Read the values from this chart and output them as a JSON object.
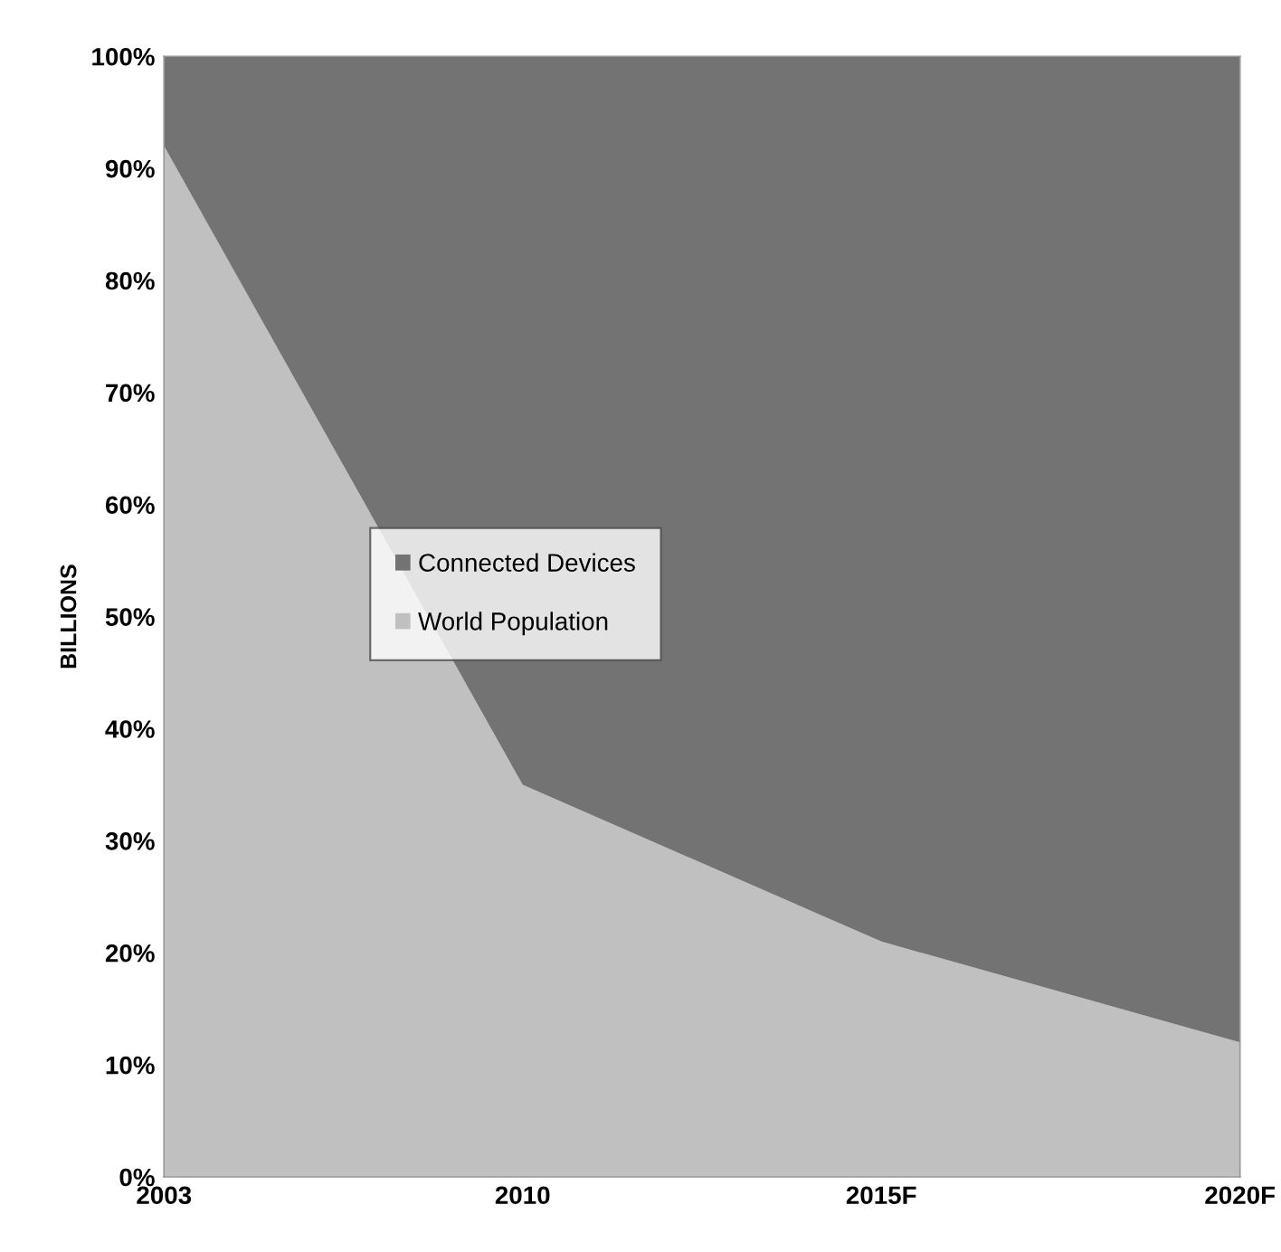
{
  "chart_data": {
    "type": "area",
    "stacked": true,
    "ylabel": "BILLIONS",
    "categories": [
      "2003",
      "2010",
      "2015F",
      "2020F"
    ],
    "series": [
      {
        "name": "World Population",
        "color": "#c0c0c0",
        "values": [
          92,
          35,
          21,
          12
        ]
      },
      {
        "name": "Connected Devices",
        "color": "#737373",
        "values": [
          8,
          65,
          79,
          88
        ]
      }
    ],
    "ylim": [
      0,
      100
    ],
    "yticks": [
      {
        "value": 0,
        "label": "0%"
      },
      {
        "value": 10,
        "label": "10%"
      },
      {
        "value": 20,
        "label": "20%"
      },
      {
        "value": 30,
        "label": "30%"
      },
      {
        "value": 40,
        "label": "40%"
      },
      {
        "value": 50,
        "label": "50%"
      },
      {
        "value": 60,
        "label": "60%"
      },
      {
        "value": 70,
        "label": "70%"
      },
      {
        "value": 80,
        "label": "80%"
      },
      {
        "value": 90,
        "label": "90%"
      },
      {
        "value": 100,
        "label": "100%"
      }
    ],
    "grid": false,
    "legend": "center left"
  }
}
